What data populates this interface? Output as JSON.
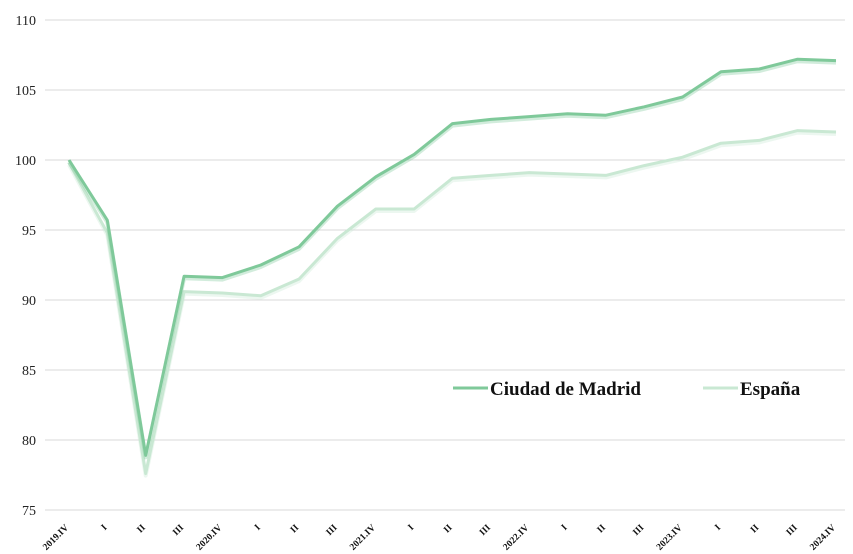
{
  "chart_data": {
    "type": "line",
    "x": [
      "2019.IV",
      "I",
      "II",
      "III",
      "2020.IV",
      "I",
      "II",
      "III",
      "2021.IV",
      "I",
      "II",
      "III",
      "2022.IV",
      "I",
      "II",
      "III",
      "2023.IV",
      "I",
      "II",
      "III",
      "2024.IV"
    ],
    "series": [
      {
        "name": "Ciudad de Madrid",
        "color": "#7fc99a",
        "values": [
          100.0,
          95.7,
          78.9,
          91.7,
          91.6,
          92.5,
          93.8,
          96.7,
          98.8,
          100.4,
          102.6,
          102.9,
          103.1,
          103.3,
          103.2,
          103.8,
          104.5,
          106.3,
          106.5,
          107.2,
          107.1
        ]
      },
      {
        "name": "España",
        "color": "#c9e8d3",
        "values": [
          99.8,
          94.8,
          77.6,
          90.6,
          90.5,
          90.3,
          91.5,
          94.4,
          96.5,
          96.5,
          98.7,
          98.9,
          99.1,
          99.0,
          98.9,
          99.6,
          100.2,
          101.2,
          101.4,
          102.1,
          102.0
        ]
      }
    ],
    "ylim": [
      75,
      110
    ],
    "yticks": [
      "75",
      "80",
      "85",
      "90",
      "95",
      "100",
      "105",
      "110"
    ],
    "grid": true,
    "legend": "center-right"
  }
}
